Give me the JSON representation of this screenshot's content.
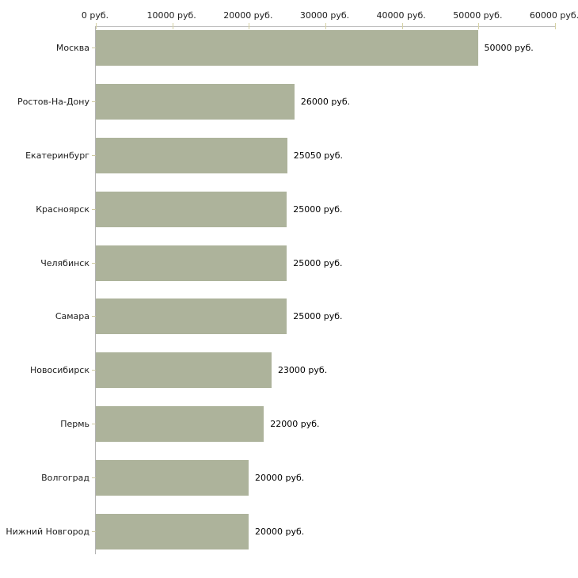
{
  "chart_data": {
    "type": "bar",
    "orientation": "horizontal",
    "title": "",
    "xlabel": "",
    "ylabel": "",
    "categories": [
      "Москва",
      "Ростов-На-Дону",
      "Екатеринбург",
      "Красноярск",
      "Челябинск",
      "Самара",
      "Новосибирск",
      "Пермь",
      "Волгоград",
      "Нижний Новгород"
    ],
    "values": [
      50000,
      26000,
      25050,
      25000,
      25000,
      25000,
      23000,
      22000,
      20000,
      20000
    ],
    "value_labels": [
      "50000 руб.",
      "26000 руб.",
      "25050 руб.",
      "25000 руб.",
      "25000 руб.",
      "23000 руб.",
      "22000 руб.",
      "20000 руб.",
      "20000 руб."
    ],
    "value_labels_full": [
      "50000 руб.",
      "26000 руб.",
      "25050 руб.",
      "25000 руб.",
      "25000 руб.",
      "25000 руб.",
      "23000 руб.",
      "22000 руб.",
      "20000 руб.",
      "20000 руб."
    ],
    "x_ticks": [
      0,
      10000,
      20000,
      30000,
      40000,
      50000,
      60000
    ],
    "x_tick_labels": [
      "0 руб.",
      "10000 руб.",
      "20000 руб.",
      "30000 руб.",
      "40000 руб.",
      "50000 руб.",
      "60000 руб."
    ],
    "xlim": [
      0,
      60000
    ],
    "grid": false,
    "legend": false,
    "unit": "руб.",
    "colors": {
      "bar": "#adb39b",
      "axis_line": "#c0c0c0",
      "yaxis_line": "#b3b3b3",
      "tick_mark": "#d6d2a5",
      "label_dash": "#cdc9a0",
      "text": "#1c1c1c",
      "background": "#ffffff"
    }
  }
}
